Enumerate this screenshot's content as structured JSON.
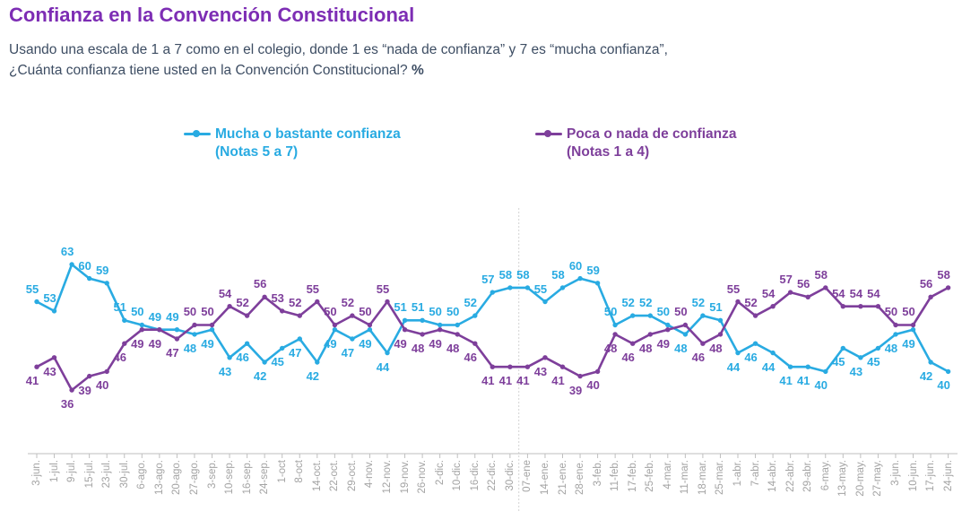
{
  "page": {
    "title": "Confianza en la Convención Constitucional",
    "subtitle_line1": "Usando una escala de 1 a 7 como en el colegio, donde 1 es “nada de confianza” y 7 es “mucha confianza”,",
    "subtitle_line2": "¿Cuánta confianza tiene usted en la Convención Constitucional?",
    "subtitle_suffix": "%"
  },
  "colors": {
    "blue": "#29ABE2",
    "purple": "#7E3F9B",
    "title": "#7D2DB4",
    "subtitle": "#3D4D63",
    "axis": "#BFBFBF",
    "tick_label": "#A3A3A3",
    "separator": "#DCDCDC",
    "background": "#FFFFFF"
  },
  "chart_data": {
    "type": "line",
    "title": "Confianza en la Convención Constitucional",
    "xlabel": "",
    "ylabel": "",
    "ylim": [
      34,
      65
    ],
    "grid": false,
    "legend_position": "top",
    "separator_after_index": 27,
    "categories": [
      "3-jun.",
      "1-jul.",
      "9-jul.",
      "15-jul.",
      "23-jul.",
      "30-jul.",
      "6-ago.",
      "13-ago.",
      "20-ago.",
      "27-ago.",
      "3-sep.",
      "10-sep.",
      "16-sep.",
      "24-sep.",
      "1-oct",
      "8-oct",
      "14-oct.",
      "22-oct.",
      "29-oct.",
      "4-nov.",
      "12-nov.",
      "19-nov.",
      "26-nov.",
      "2-dic.",
      "10-dic.",
      "16-dic.",
      "22-dic.",
      "30-dic.",
      "07-ene",
      "14-ene.",
      "21-ene.",
      "28-ene.",
      "3-feb.",
      "11-feb.",
      "17-feb.",
      "25-feb.",
      "4-mar.",
      "11-mar.",
      "18-mar.",
      "25-mar.",
      "1-abr.",
      "7-abr.",
      "14-abr.",
      "22-abr.",
      "29-abr.",
      "6-may.",
      "13-may.",
      "20-may.",
      "27-may.",
      "3-jun.",
      "10-jun.",
      "17-jun.",
      "24-jun."
    ],
    "series": [
      {
        "name": "Mucha o bastante confianza",
        "note": "(Notas 5 a 7)",
        "color_key": "blue",
        "values": [
          55,
          53,
          63,
          60,
          59,
          51,
          50,
          49,
          49,
          48,
          49,
          43,
          46,
          42,
          45,
          47,
          42,
          49,
          47,
          49,
          44,
          51,
          51,
          50,
          50,
          52,
          57,
          58,
          58,
          55,
          58,
          60,
          59,
          50,
          52,
          52,
          50,
          48,
          52,
          51,
          44,
          46,
          44,
          41,
          41,
          40,
          45,
          43,
          45,
          48,
          49,
          42,
          40
        ]
      },
      {
        "name": "Poca o nada de confianza",
        "note": "(Notas 1 a 4)",
        "color_key": "purple",
        "values": [
          41,
          43,
          36,
          39,
          40,
          46,
          49,
          49,
          47,
          50,
          50,
          54,
          52,
          56,
          53,
          52,
          55,
          50,
          52,
          50,
          55,
          49,
          48,
          49,
          48,
          46,
          41,
          41,
          41,
          43,
          41,
          39,
          40,
          48,
          46,
          48,
          49,
          50,
          46,
          48,
          55,
          52,
          54,
          57,
          56,
          58,
          54,
          54,
          54,
          50,
          50,
          56,
          58
        ]
      }
    ]
  }
}
